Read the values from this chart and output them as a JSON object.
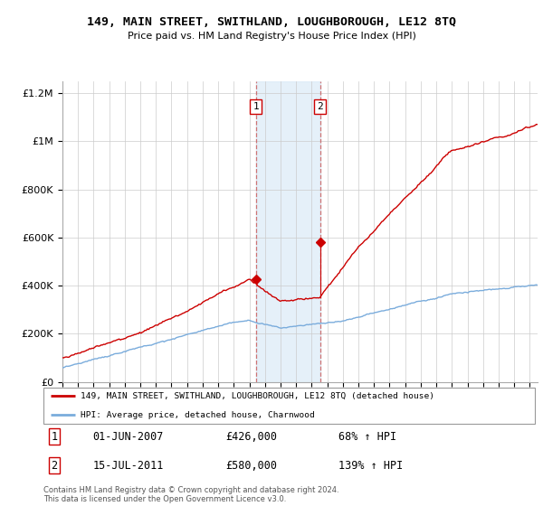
{
  "title": "149, MAIN STREET, SWITHLAND, LOUGHBOROUGH, LE12 8TQ",
  "subtitle": "Price paid vs. HM Land Registry's House Price Index (HPI)",
  "legend_line1": "149, MAIN STREET, SWITHLAND, LOUGHBOROUGH, LE12 8TQ (detached house)",
  "legend_line2": "HPI: Average price, detached house, Charnwood",
  "sale1_label": "1",
  "sale1_date": "01-JUN-2007",
  "sale1_price": "£426,000",
  "sale1_pct": "68% ↑ HPI",
  "sale2_label": "2",
  "sale2_date": "15-JUL-2011",
  "sale2_price": "£580,000",
  "sale2_pct": "139% ↑ HPI",
  "footnote": "Contains HM Land Registry data © Crown copyright and database right 2024.\nThis data is licensed under the Open Government Licence v3.0.",
  "hpi_color": "#7aacdc",
  "price_color": "#cc0000",
  "sale1_x": 2007.42,
  "sale1_y": 426000,
  "sale2_x": 2011.54,
  "sale2_y": 580000,
  "shade_xmin": 2007.42,
  "shade_xmax": 2011.54,
  "ylim": [
    0,
    1250000
  ],
  "xlim_start": 1995.0,
  "xlim_end": 2025.5
}
